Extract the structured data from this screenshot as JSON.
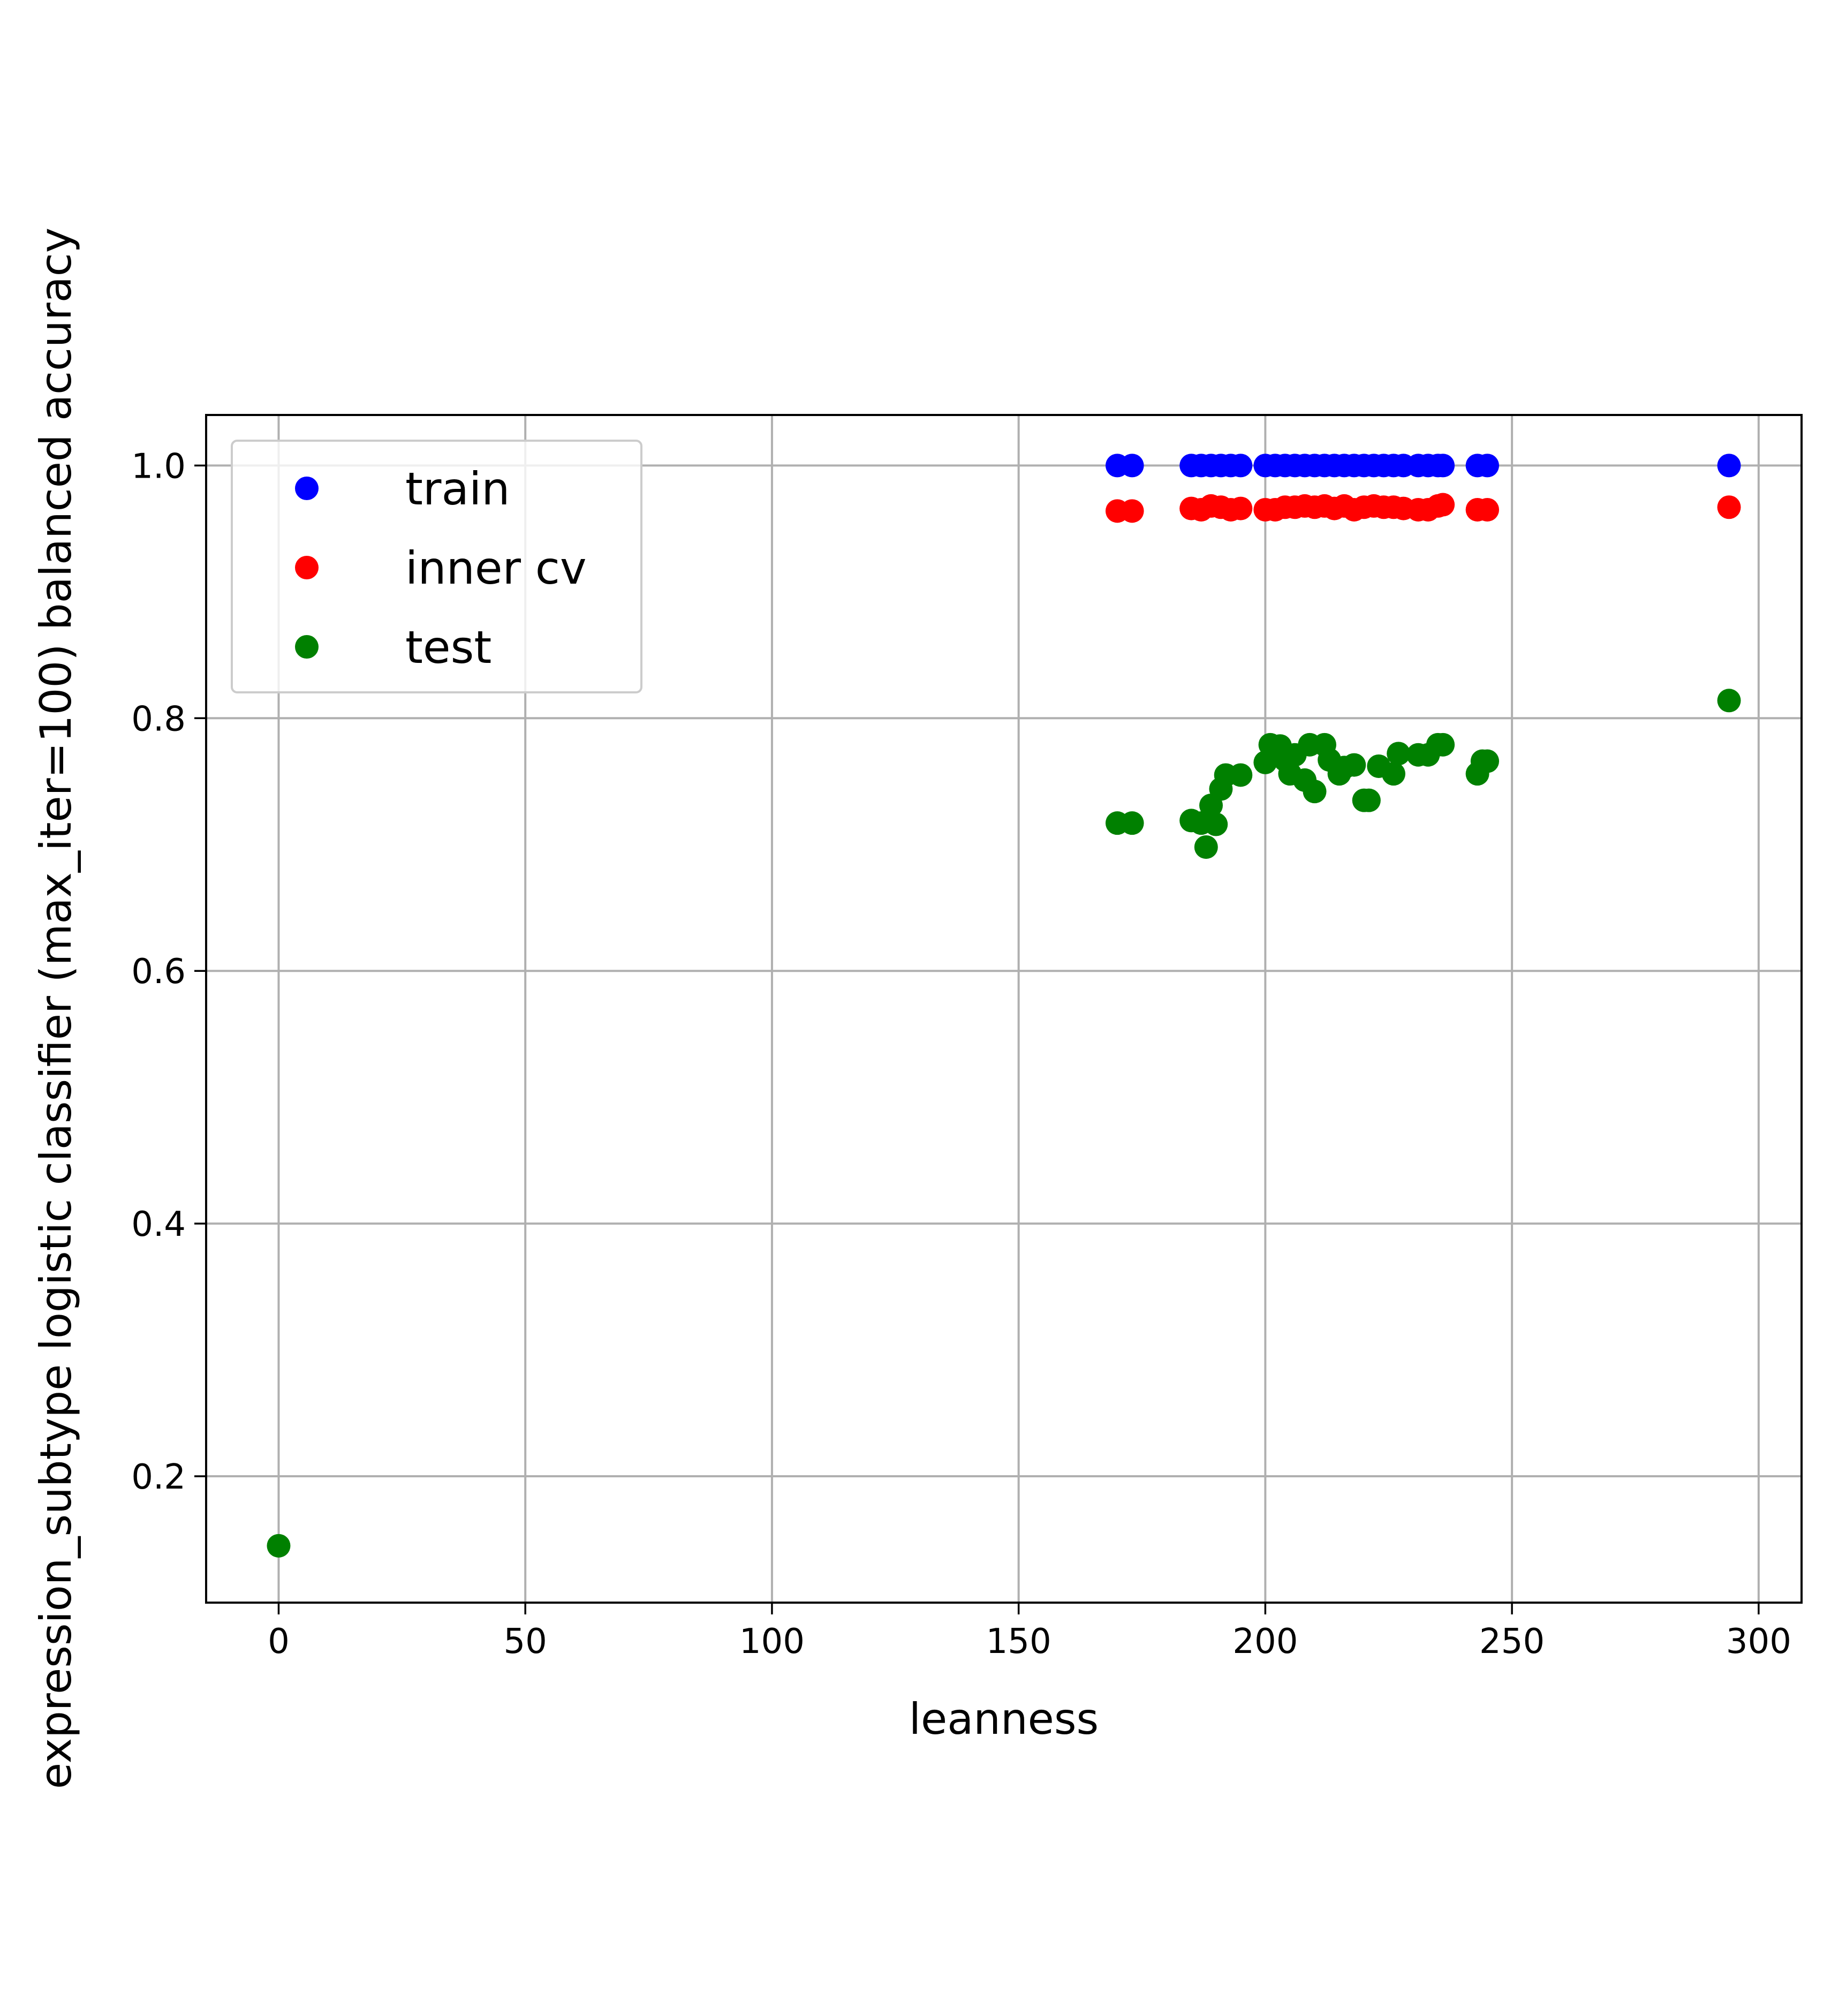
{
  "chart_data": {
    "type": "scatter",
    "title": "",
    "xlabel": "leanness",
    "ylabel": "expression_subtype logistic classifier (max_iter=100) balanced accuracy",
    "xlim": [
      -14.7,
      308.7
    ],
    "ylim": [
      0.1,
      1.04
    ],
    "xticks": [
      0,
      50,
      100,
      150,
      200,
      250,
      300
    ],
    "xtick_labels": [
      "0",
      "50",
      "100",
      "150",
      "200",
      "250",
      "300"
    ],
    "yticks": [
      0.2,
      0.4,
      0.6,
      0.8,
      1.0
    ],
    "ytick_labels": [
      "0.2",
      "0.4",
      "0.6",
      "0.8",
      "1.0"
    ],
    "grid": true,
    "legend": {
      "position": "upper-left"
    },
    "series": [
      {
        "name": "train",
        "color": "#0000ff",
        "points": [
          [
            170,
            1.0
          ],
          [
            173,
            1.0
          ],
          [
            185,
            1.0
          ],
          [
            187,
            1.0
          ],
          [
            189,
            1.0
          ],
          [
            191,
            1.0
          ],
          [
            193,
            1.0
          ],
          [
            195,
            1.0
          ],
          [
            200,
            1.0
          ],
          [
            202,
            1.0
          ],
          [
            204,
            1.0
          ],
          [
            206,
            1.0
          ],
          [
            208,
            1.0
          ],
          [
            210,
            1.0
          ],
          [
            212,
            1.0
          ],
          [
            214,
            1.0
          ],
          [
            216,
            1.0
          ],
          [
            218,
            1.0
          ],
          [
            220,
            1.0
          ],
          [
            222,
            1.0
          ],
          [
            224,
            1.0
          ],
          [
            226,
            1.0
          ],
          [
            228,
            1.0
          ],
          [
            231,
            1.0
          ],
          [
            233,
            1.0
          ],
          [
            235,
            1.0
          ],
          [
            236,
            1.0
          ],
          [
            243,
            1.0
          ],
          [
            245,
            1.0
          ],
          [
            294,
            1.0
          ]
        ]
      },
      {
        "name": "inner cv",
        "color": "#ff0000",
        "points": [
          [
            170,
            0.964
          ],
          [
            173,
            0.964
          ],
          [
            185,
            0.966
          ],
          [
            187,
            0.965
          ],
          [
            189,
            0.968
          ],
          [
            191,
            0.967
          ],
          [
            193,
            0.965
          ],
          [
            195,
            0.966
          ],
          [
            200,
            0.965
          ],
          [
            202,
            0.965
          ],
          [
            204,
            0.967
          ],
          [
            206,
            0.967
          ],
          [
            208,
            0.968
          ],
          [
            210,
            0.967
          ],
          [
            212,
            0.968
          ],
          [
            214,
            0.966
          ],
          [
            216,
            0.968
          ],
          [
            218,
            0.965
          ],
          [
            220,
            0.967
          ],
          [
            222,
            0.968
          ],
          [
            224,
            0.967
          ],
          [
            226,
            0.967
          ],
          [
            228,
            0.966
          ],
          [
            231,
            0.965
          ],
          [
            233,
            0.965
          ],
          [
            235,
            0.968
          ],
          [
            236,
            0.969
          ],
          [
            243,
            0.965
          ],
          [
            245,
            0.965
          ],
          [
            294,
            0.967
          ]
        ]
      },
      {
        "name": "test",
        "color": "#008000",
        "points": [
          [
            0,
            0.145
          ],
          [
            170,
            0.717
          ],
          [
            173,
            0.717
          ],
          [
            185,
            0.719
          ],
          [
            187,
            0.717
          ],
          [
            188,
            0.698
          ],
          [
            189,
            0.731
          ],
          [
            191,
            0.744
          ],
          [
            192,
            0.755
          ],
          [
            195,
            0.755
          ],
          [
            190,
            0.716
          ],
          [
            200,
            0.765
          ],
          [
            201,
            0.779
          ],
          [
            203,
            0.778
          ],
          [
            204,
            0.767
          ],
          [
            205,
            0.756
          ],
          [
            206,
            0.771
          ],
          [
            208,
            0.751
          ],
          [
            209,
            0.779
          ],
          [
            210,
            0.742
          ],
          [
            212,
            0.779
          ],
          [
            213,
            0.767
          ],
          [
            215,
            0.756
          ],
          [
            216,
            0.761
          ],
          [
            218,
            0.763
          ],
          [
            220,
            0.735
          ],
          [
            221,
            0.735
          ],
          [
            223,
            0.762
          ],
          [
            226,
            0.756
          ],
          [
            227,
            0.772
          ],
          [
            231,
            0.771
          ],
          [
            233,
            0.771
          ],
          [
            235,
            0.779
          ],
          [
            236,
            0.779
          ],
          [
            243,
            0.756
          ],
          [
            244,
            0.766
          ],
          [
            245,
            0.766
          ],
          [
            294,
            0.814
          ]
        ]
      }
    ]
  }
}
